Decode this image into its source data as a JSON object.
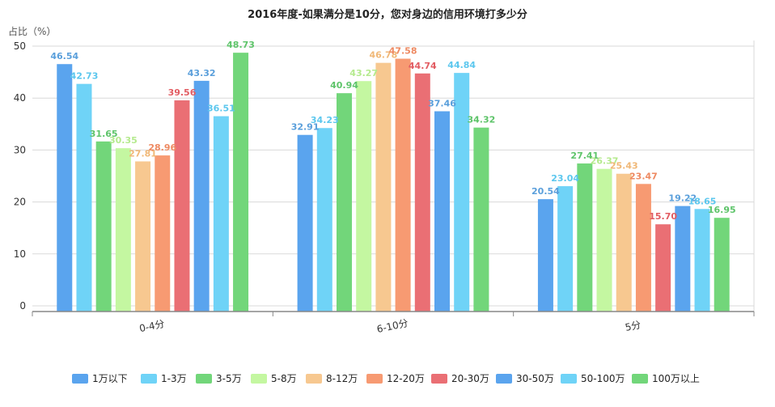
{
  "chart_data": {
    "type": "bar",
    "title": "2016年度-如果满分是10分，您对身边的信用环境打多少分",
    "ylabel": "占比（%）",
    "xlabel": "",
    "ylim": [
      0,
      50
    ],
    "yticks": [
      0,
      10,
      20,
      30,
      40,
      50
    ],
    "grid": true,
    "legend_position": "bottom",
    "categories": [
      "0-4分",
      "6-10分",
      "5分"
    ],
    "series": [
      {
        "name": "1万以下",
        "color": "#5aa4ee",
        "label_color": "#5a9fdb",
        "values": [
          46.54,
          32.91,
          20.54
        ]
      },
      {
        "name": "1-3万",
        "color": "#6fd3f7",
        "label_color": "#5cc7ee",
        "values": [
          42.73,
          34.23,
          23.04
        ]
      },
      {
        "name": "3-5万",
        "color": "#72d67a",
        "label_color": "#5ec46a",
        "values": [
          31.65,
          40.94,
          27.41
        ]
      },
      {
        "name": "5-8万",
        "color": "#c4f7a1",
        "label_color": "#b5ea8e",
        "values": [
          30.35,
          43.27,
          26.37
        ]
      },
      {
        "name": "8-12万",
        "color": "#f7c890",
        "label_color": "#f0b877",
        "values": [
          27.81,
          46.78,
          25.43
        ]
      },
      {
        "name": "12-20万",
        "color": "#f79a72",
        "label_color": "#ee8a62",
        "values": [
          28.96,
          47.58,
          23.47
        ]
      },
      {
        "name": "20-30万",
        "color": "#ea6f74",
        "label_color": "#e25c62",
        "values": [
          39.56,
          44.74,
          15.7
        ]
      },
      {
        "name": "30-50万",
        "color": "#5aa4ee",
        "label_color": "#5a9fdb",
        "values": [
          43.32,
          37.46,
          19.22
        ]
      },
      {
        "name": "50-100万",
        "color": "#6fd3f7",
        "label_color": "#5cc7ee",
        "values": [
          36.51,
          44.84,
          18.65
        ]
      },
      {
        "name": "100万以上",
        "color": "#72d67a",
        "label_color": "#5ec46a",
        "values": [
          48.73,
          34.32,
          16.95
        ]
      }
    ],
    "data_labels": [
      [
        "46.54",
        "32.91",
        "20.54"
      ],
      [
        "42.73",
        "34.23",
        "23.04"
      ],
      [
        "31.65",
        "40.94",
        "27.41"
      ],
      [
        "30.35",
        "43.27",
        "26.37"
      ],
      [
        "27.81",
        "46.78",
        "25.43"
      ],
      [
        "28.96",
        "47.58",
        "23.47"
      ],
      [
        "39.56",
        "44.74",
        "15.70"
      ],
      [
        "43.32",
        "37.46",
        "19.22"
      ],
      [
        "36.51",
        "44.84",
        "18.65"
      ],
      [
        "48.73",
        "34.32",
        "16.95"
      ]
    ]
  }
}
